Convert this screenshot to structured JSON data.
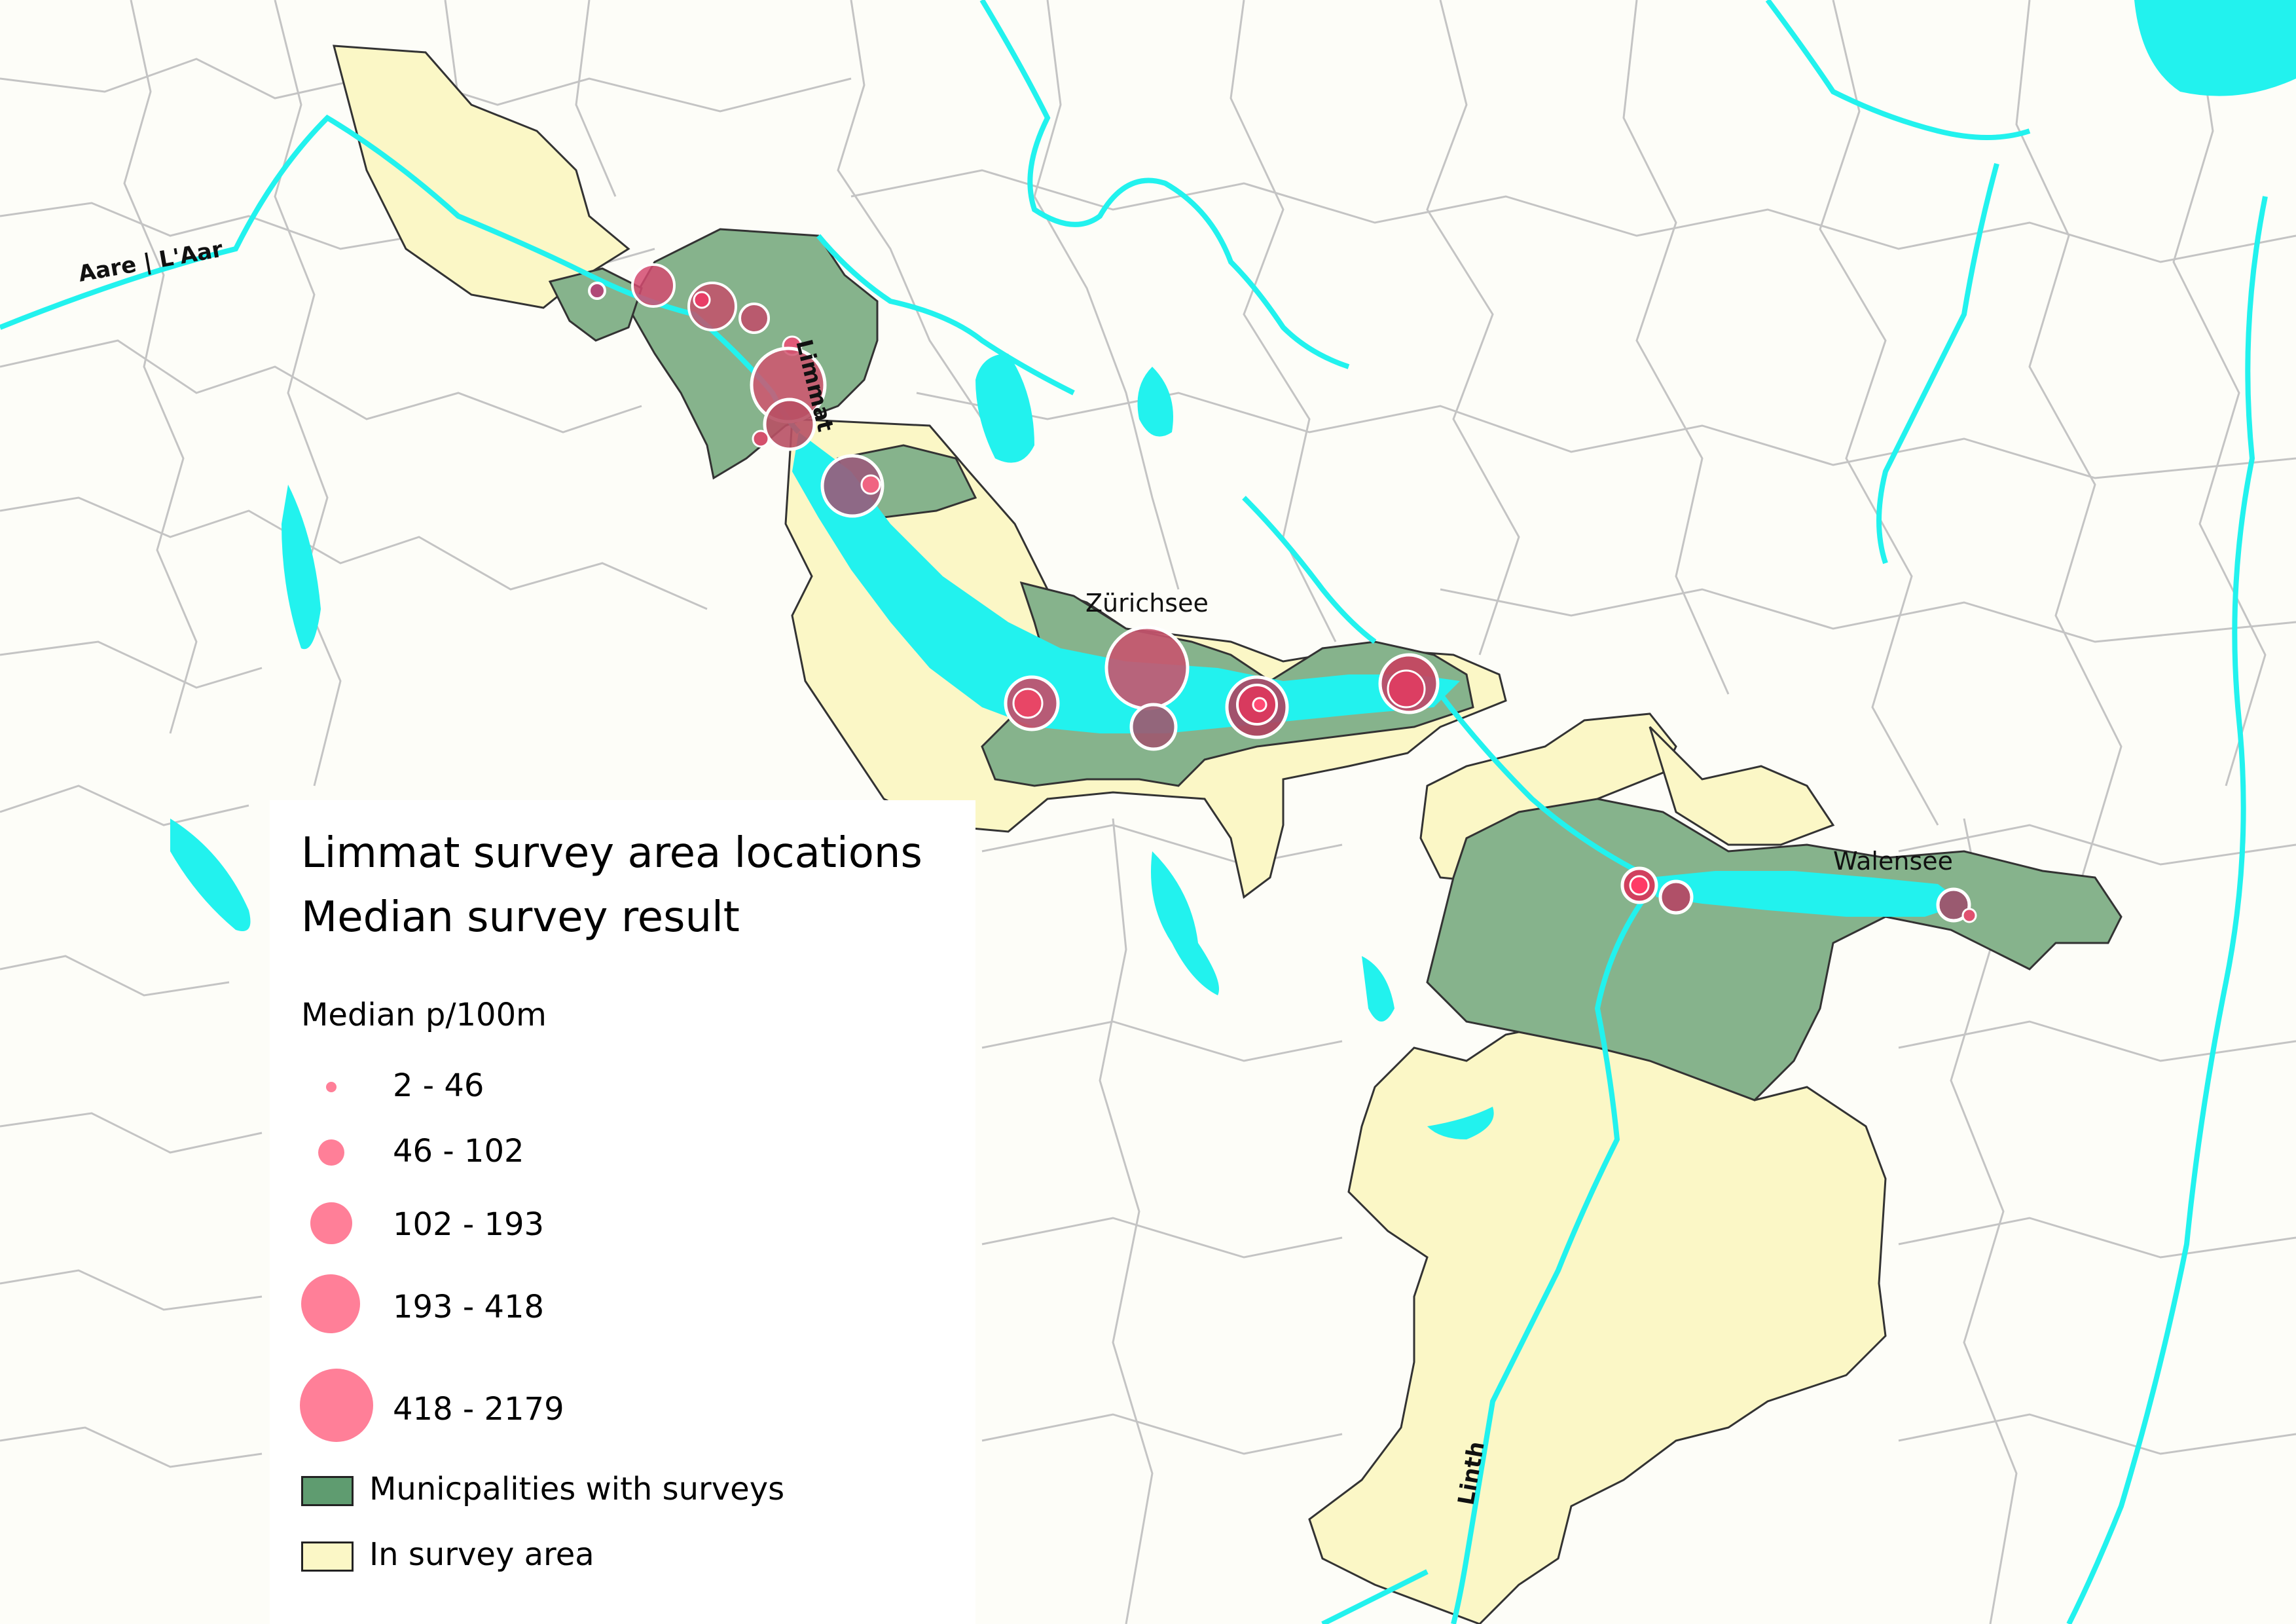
{
  "colors": {
    "background": "#fdfdf8",
    "water": "#22f2ee",
    "surveyed_municipality": "#86b38c",
    "survey_area": "#fbf7c6",
    "marker": "#ff6f8c",
    "boundary": "#bdbdbd"
  },
  "labels": {
    "river_aare": "Aare | L'Aar",
    "river_limmat": "Limmat",
    "lake_zurich": "Zürichsee",
    "lake_walen": "Walensee",
    "river_linth": "Linth"
  },
  "legend": {
    "title_line1": "Limmat survey area locations",
    "title_line2": "Median survey result",
    "subtitle": "Median p/100m",
    "size_classes": [
      {
        "label": "2 - 46"
      },
      {
        "label": "46 - 102"
      },
      {
        "label": "102 - 193"
      },
      {
        "label": "193 - 418"
      },
      {
        "label": "418 - 2179"
      }
    ],
    "municipalities_label": "Municpalities with surveys",
    "area_label": "In survey area"
  }
}
